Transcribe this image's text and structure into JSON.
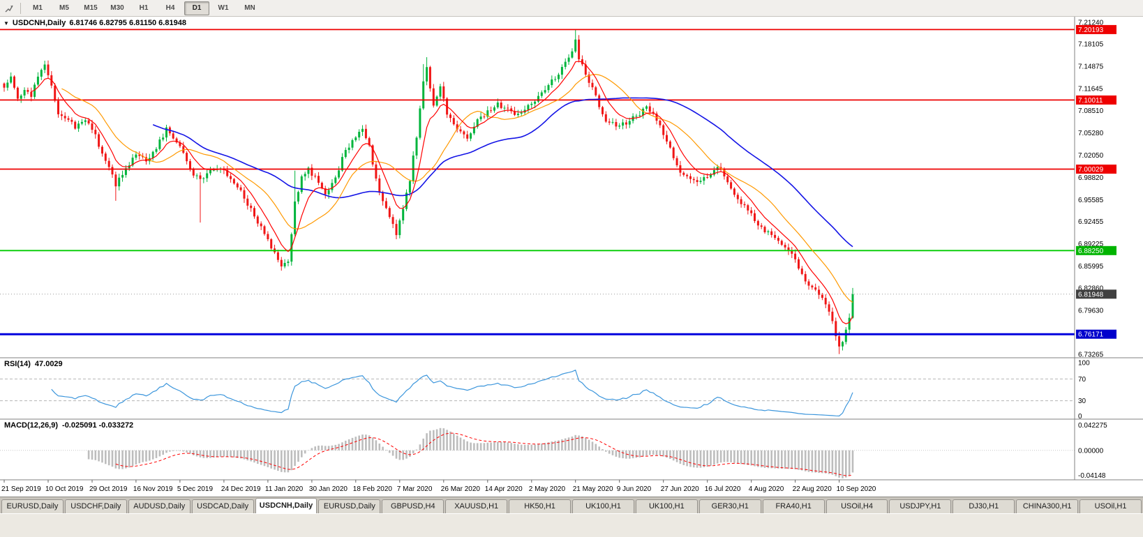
{
  "toolbar": {
    "timeframes": [
      {
        "label": "M1",
        "active": false
      },
      {
        "label": "M5",
        "active": false
      },
      {
        "label": "M15",
        "active": false
      },
      {
        "label": "M30",
        "active": false
      },
      {
        "label": "H1",
        "active": false
      },
      {
        "label": "H4",
        "active": false
      },
      {
        "label": "D1",
        "active": true
      },
      {
        "label": "W1",
        "active": false
      },
      {
        "label": "MN",
        "active": false
      }
    ]
  },
  "chart": {
    "title": "USDCNH,Daily",
    "ohlc": "6.81746 6.82795 6.81150 6.81948",
    "dropdown_glyph": "▼"
  },
  "rsi_panel": {
    "label": "RSI(14)",
    "value": "47.0029"
  },
  "macd_panel": {
    "label": "MACD(12,26,9)",
    "values": "-0.025091 -0.033272"
  },
  "price_axis": {
    "labels": [
      {
        "text": "7.21240",
        "type": "normal"
      },
      {
        "text": "7.20193",
        "type": "badge",
        "color": "#ee0000"
      },
      {
        "text": "7.18105",
        "type": "normal"
      },
      {
        "text": "7.14875",
        "type": "normal"
      },
      {
        "text": "7.11645",
        "type": "normal"
      },
      {
        "text": "7.10011",
        "type": "badge",
        "color": "#ee0000"
      },
      {
        "text": "7.08510",
        "type": "normal"
      },
      {
        "text": "7.05280",
        "type": "normal"
      },
      {
        "text": "7.02050",
        "type": "normal"
      },
      {
        "text": "7.00029",
        "type": "badge",
        "color": "#ee0000"
      },
      {
        "text": "6.98820",
        "type": "normal"
      },
      {
        "text": "6.95585",
        "type": "normal"
      },
      {
        "text": "6.92455",
        "type": "normal"
      },
      {
        "text": "6.89225",
        "type": "normal"
      },
      {
        "text": "6.88250",
        "type": "badge",
        "color": "#00b400"
      },
      {
        "text": "6.85995",
        "type": "normal"
      },
      {
        "text": "6.82860",
        "type": "normal"
      },
      {
        "text": "6.81948",
        "type": "badge",
        "color": "#404040"
      },
      {
        "text": "6.79630",
        "type": "normal"
      },
      {
        "text": "6.76171",
        "type": "badge",
        "color": "#0000cc"
      },
      {
        "text": "6.73265",
        "type": "normal"
      }
    ]
  },
  "hlines": [
    {
      "price": 7.20193,
      "color": "#ee0000",
      "width": 1.8
    },
    {
      "price": 7.10011,
      "color": "#ee0000",
      "width": 1.8
    },
    {
      "price": 7.00029,
      "color": "#ee0000",
      "width": 1.8
    },
    {
      "price": 6.8825,
      "color": "#00cc00",
      "width": 1.8
    },
    {
      "price": 6.76171,
      "color": "#0000dd",
      "width": 3
    },
    {
      "price": 6.81948,
      "color": "#999999",
      "width": 1,
      "dash": "1,3"
    }
  ],
  "colors": {
    "bull": "#00b43c",
    "bear": "#f01616",
    "ma_fast": "#ff0000",
    "ma_mid": "#ff9900",
    "ma_slow": "#1414e6",
    "rsi_line": "#3c96dc",
    "level_dash": "#b4b4b4",
    "macd_hist": "#bdbdbd",
    "macd_signal": "#ff0000",
    "axis_text": "#000000"
  },
  "chart_data": {
    "type": "candlestick",
    "symbol": "USDCNH",
    "timeframe": "Daily",
    "num_candles": 252,
    "y_axis": {
      "min": 6.73265,
      "max": 7.2124
    },
    "close_anchors": [
      [
        0,
        7.118
      ],
      [
        2,
        7.132
      ],
      [
        4,
        7.102
      ],
      [
        6,
        7.118
      ],
      [
        8,
        7.108
      ],
      [
        10,
        7.135
      ],
      [
        12,
        7.148
      ],
      [
        14,
        7.12
      ],
      [
        16,
        7.082
      ],
      [
        18,
        7.072
      ],
      [
        21,
        7.062
      ],
      [
        24,
        7.072
      ],
      [
        27,
        7.048
      ],
      [
        30,
        7.012
      ],
      [
        33,
        6.978
      ],
      [
        36,
        7.002
      ],
      [
        39,
        7.022
      ],
      [
        42,
        7.012
      ],
      [
        45,
        7.032
      ],
      [
        48,
        7.058
      ],
      [
        50,
        7.048
      ],
      [
        53,
        7.022
      ],
      [
        56,
        6.992
      ],
      [
        58,
        6.985
      ],
      [
        61,
        6.996
      ],
      [
        64,
        7.0
      ],
      [
        67,
        6.988
      ],
      [
        70,
        6.968
      ],
      [
        73,
        6.942
      ],
      [
        76,
        6.915
      ],
      [
        79,
        6.888
      ],
      [
        82,
        6.862
      ],
      [
        84,
        6.87
      ],
      [
        85,
        6.905
      ],
      [
        86,
        6.952
      ],
      [
        88,
        6.988
      ],
      [
        90,
        7.0
      ],
      [
        92,
        6.988
      ],
      [
        95,
        6.962
      ],
      [
        98,
        6.988
      ],
      [
        101,
        7.028
      ],
      [
        104,
        7.048
      ],
      [
        106,
        7.055
      ],
      [
        108,
        7.032
      ],
      [
        110,
        6.985
      ],
      [
        112,
        6.952
      ],
      [
        114,
        6.93
      ],
      [
        116,
        6.908
      ],
      [
        118,
        6.945
      ],
      [
        120,
        6.985
      ],
      [
        122,
        7.048
      ],
      [
        124,
        7.125
      ],
      [
        125,
        7.148
      ],
      [
        127,
        7.092
      ],
      [
        129,
        7.118
      ],
      [
        131,
        7.082
      ],
      [
        134,
        7.058
      ],
      [
        137,
        7.045
      ],
      [
        140,
        7.072
      ],
      [
        143,
        7.082
      ],
      [
        146,
        7.095
      ],
      [
        149,
        7.085
      ],
      [
        152,
        7.078
      ],
      [
        155,
        7.092
      ],
      [
        158,
        7.105
      ],
      [
        161,
        7.122
      ],
      [
        164,
        7.138
      ],
      [
        166,
        7.152
      ],
      [
        168,
        7.172
      ],
      [
        169,
        7.185
      ],
      [
        170,
        7.162
      ],
      [
        172,
        7.138
      ],
      [
        174,
        7.118
      ],
      [
        176,
        7.092
      ],
      [
        178,
        7.072
      ],
      [
        181,
        7.062
      ],
      [
        184,
        7.068
      ],
      [
        187,
        7.078
      ],
      [
        190,
        7.088
      ],
      [
        192,
        7.078
      ],
      [
        194,
        7.062
      ],
      [
        196,
        7.042
      ],
      [
        198,
        7.015
      ],
      [
        200,
        6.998
      ],
      [
        203,
        6.988
      ],
      [
        206,
        6.982
      ],
      [
        209,
        6.995
      ],
      [
        211,
        7.002
      ],
      [
        213,
        6.992
      ],
      [
        215,
        6.972
      ],
      [
        217,
        6.955
      ],
      [
        219,
        6.945
      ],
      [
        221,
        6.935
      ],
      [
        223,
        6.922
      ],
      [
        225,
        6.912
      ],
      [
        227,
        6.905
      ],
      [
        229,
        6.898
      ],
      [
        231,
        6.888
      ],
      [
        233,
        6.875
      ],
      [
        235,
        6.858
      ],
      [
        237,
        6.84
      ],
      [
        239,
        6.828
      ],
      [
        241,
        6.818
      ],
      [
        243,
        6.805
      ],
      [
        245,
        6.778
      ],
      [
        246,
        6.762
      ],
      [
        247,
        6.745
      ],
      [
        248,
        6.752
      ],
      [
        249,
        6.768
      ],
      [
        250,
        6.788
      ],
      [
        251,
        6.8195
      ]
    ],
    "spikes": [
      {
        "i": 12,
        "high": 7.157
      },
      {
        "i": 33,
        "low": 6.9545
      },
      {
        "i": 58,
        "low": 6.923
      },
      {
        "i": 82,
        "low": 6.8535
      },
      {
        "i": 86,
        "high": 6.998
      },
      {
        "i": 116,
        "low": 6.899
      },
      {
        "i": 124,
        "high": 7.152
      },
      {
        "i": 125,
        "high": 7.162
      },
      {
        "i": 169,
        "high": 7.2019
      },
      {
        "i": 247,
        "low": 6.733
      },
      {
        "i": 251,
        "high": 6.8285
      }
    ],
    "date_ticks": [
      [
        0,
        "21 Sep 2019"
      ],
      [
        13,
        "10 Oct 2019"
      ],
      [
        26,
        "29 Oct 2019"
      ],
      [
        39,
        "16 Nov 2019"
      ],
      [
        52,
        "5 Dec 2019"
      ],
      [
        65,
        "24 Dec 2019"
      ],
      [
        78,
        "11 Jan 2020"
      ],
      [
        91,
        "30 Jan 2020"
      ],
      [
        104,
        "18 Feb 2020"
      ],
      [
        117,
        "7 Mar 2020"
      ],
      [
        130,
        "26 Mar 2020"
      ],
      [
        143,
        "14 Apr 2020"
      ],
      [
        156,
        "2 May 2020"
      ],
      [
        169,
        "21 May 2020"
      ],
      [
        182,
        "9 Jun 2020"
      ],
      [
        195,
        "27 Jun 2020"
      ],
      [
        208,
        "16 Jul 2020"
      ],
      [
        221,
        "4 Aug 2020"
      ],
      [
        234,
        "22 Aug 2020"
      ],
      [
        247,
        "10 Sep 2020"
      ]
    ],
    "moving_averages": [
      {
        "period": 8,
        "type": "ema",
        "color_key": "ma_fast"
      },
      {
        "period": 18,
        "type": "sma",
        "color_key": "ma_mid"
      },
      {
        "period": 45,
        "type": "sma",
        "color_key": "ma_slow"
      }
    ],
    "rsi": {
      "period": 14,
      "current": "47.0029",
      "levels": [
        100,
        70,
        30,
        0
      ],
      "dash_levels": [
        70,
        30
      ]
    },
    "macd": {
      "fast": 12,
      "slow": 26,
      "signal": 9,
      "current": "-0.025091 -0.033272",
      "axis": {
        "max": "0.042275",
        "mid": "0.00000",
        "min": "-0.04148"
      }
    }
  },
  "tabs": {
    "active_index": 4,
    "items": [
      "EURUSD,Daily",
      "USDCHF,Daily",
      "AUDUSD,Daily",
      "USDCAD,Daily",
      "USDCNH,Daily",
      "EURUSD,Daily",
      "GBPUSD,H4",
      "XAUUSD,H1",
      "HK50,H1",
      "UK100,H1",
      "UK100,H1",
      "GER30,H1",
      "FRA40,H1",
      "USOil,H4",
      "USDJPY,H1",
      "DJ30,H1",
      "CHINA300,H1",
      "USOil,H1"
    ]
  }
}
